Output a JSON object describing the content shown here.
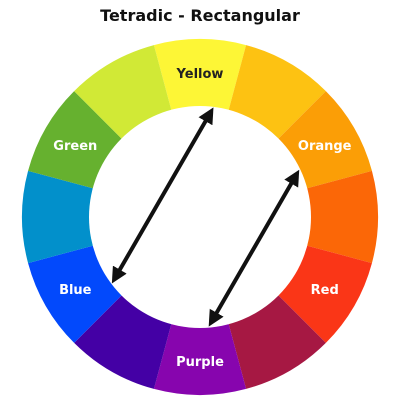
{
  "title": "Tetradic - Rectangular",
  "segments": [
    {
      "color": "#FDF636",
      "label": "Yellow",
      "label_color": "#222222"
    },
    {
      "color": "#FDC212",
      "label": "",
      "label_color": ""
    },
    {
      "color": "#FB9E06",
      "label": "Orange",
      "label_color": "#ffffff"
    },
    {
      "color": "#FB6707",
      "label": "",
      "label_color": ""
    },
    {
      "color": "#FA3617",
      "label": "Red",
      "label_color": "#ffffff"
    },
    {
      "color": "#A61843",
      "label": "",
      "label_color": ""
    },
    {
      "color": "#8705AE",
      "label": "Purple",
      "label_color": "#ffffff"
    },
    {
      "color": "#4400A5",
      "label": "",
      "label_color": ""
    },
    {
      "color": "#0249FC",
      "label": "Blue",
      "label_color": "#ffffff"
    },
    {
      "color": "#0290CB",
      "label": "",
      "label_color": ""
    },
    {
      "color": "#66B12F",
      "label": "Green",
      "label_color": "#ffffff"
    },
    {
      "color": "#D1E936",
      "label": "",
      "label_color": ""
    }
  ],
  "arrows": [
    {
      "name": "yellow-blue-arrow",
      "from": "Yellow",
      "to": "Blue"
    },
    {
      "name": "orange-purple-arrow",
      "from": "Orange",
      "to": "Purple"
    }
  ]
}
